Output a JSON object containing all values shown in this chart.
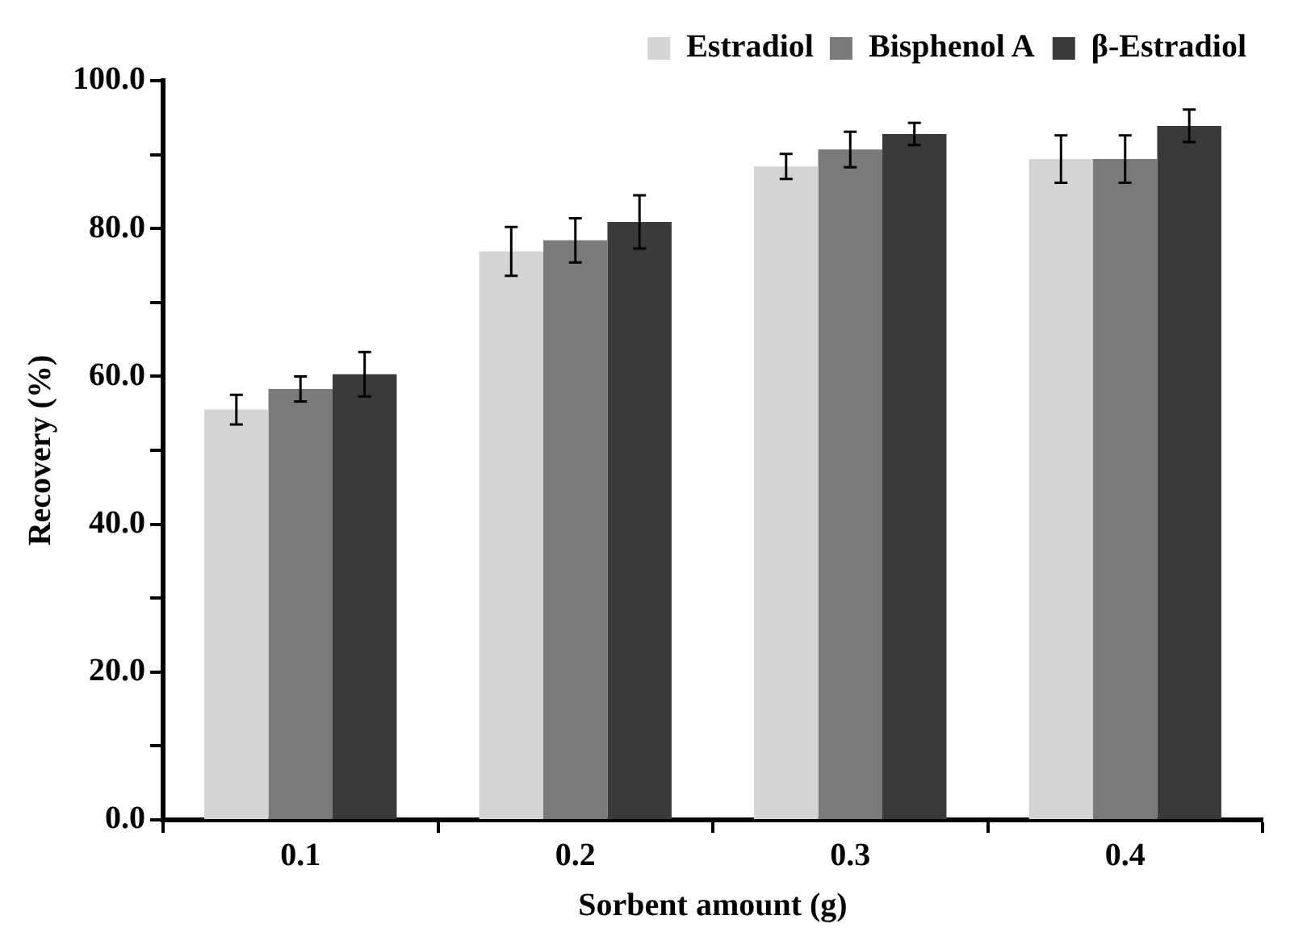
{
  "chart_data": {
    "type": "bar",
    "xlabel": "Sorbent amount (g)",
    "ylabel": "Recovery (%)",
    "categories": [
      "0.1",
      "0.2",
      "0.3",
      "0.4"
    ],
    "series": [
      {
        "name": "Estradiol",
        "color": "#d4d4d4",
        "values": [
          55.5,
          76.9,
          88.4,
          89.4
        ],
        "errors": [
          2,
          3.3,
          1.7,
          3.2
        ]
      },
      {
        "name": "Bisphenol A",
        "color": "#7a7a7a",
        "values": [
          58.3,
          78.4,
          90.7,
          89.4
        ],
        "errors": [
          1.7,
          3,
          2.4,
          3.2
        ]
      },
      {
        "name": "β-Estradiol",
        "color": "#3a3a3a",
        "values": [
          60.3,
          80.9,
          92.8,
          93.9
        ],
        "errors": [
          3,
          3.6,
          1.5,
          2.2
        ]
      }
    ],
    "ylim": [
      0,
      100
    ],
    "yticks": [
      {
        "value": 0,
        "label": "0.0"
      },
      {
        "value": 10,
        "label": null
      },
      {
        "value": 20,
        "label": "20.0"
      },
      {
        "value": 30,
        "label": null
      },
      {
        "value": 40,
        "label": "40.0"
      },
      {
        "value": 50,
        "label": null
      },
      {
        "value": 60,
        "label": "60.0"
      },
      {
        "value": 70,
        "label": null
      },
      {
        "value": 80,
        "label": "80.0"
      },
      {
        "value": 90,
        "label": null
      },
      {
        "value": 100,
        "label": "100.0"
      }
    ],
    "grid": false,
    "legend": "top right"
  }
}
